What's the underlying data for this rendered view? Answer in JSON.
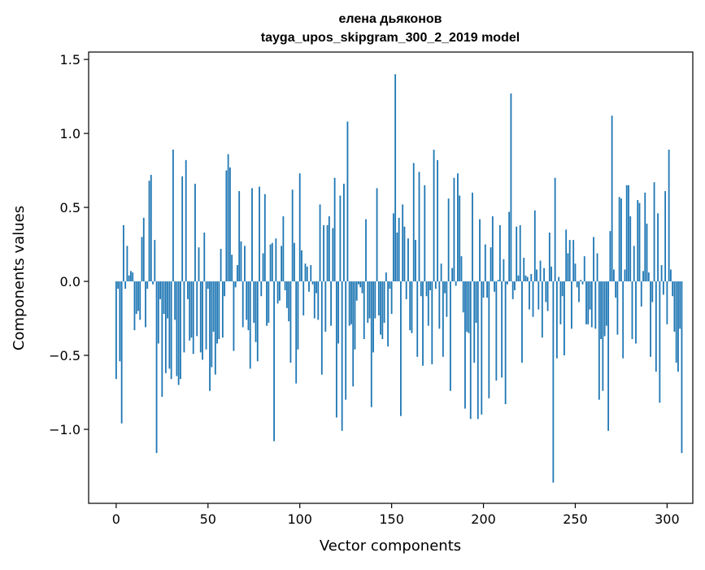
{
  "chart_data": {
    "type": "bar",
    "title": "елена дьяконов",
    "subtitle": "tayga_upos_skipgram_300_2_2019 model",
    "xlabel": "Vector components",
    "ylabel": "Components values",
    "xlim": [
      -15,
      314
    ],
    "ylim": [
      -1.5,
      1.55
    ],
    "xticks": [
      0,
      50,
      100,
      150,
      200,
      250,
      300
    ],
    "xtick_labels": [
      "0",
      "50",
      "100",
      "150",
      "200",
      "250",
      "300"
    ],
    "yticks": [
      -1.0,
      -0.5,
      0.0,
      0.5,
      1.0,
      1.5
    ],
    "ytick_labels": [
      "−1.0",
      "−0.5",
      "0.0",
      "0.5",
      "1.0",
      "1.5"
    ],
    "grid": false,
    "bar_color": "#1f77b4",
    "values": [
      -0.66,
      -0.05,
      -0.54,
      -0.96,
      0.38,
      -0.05,
      0.24,
      0.04,
      0.07,
      0.06,
      -0.33,
      -0.22,
      -0.2,
      -0.26,
      0.3,
      0.43,
      -0.31,
      -0.05,
      0.68,
      0.72,
      -0.02,
      0.28,
      -1.16,
      -0.42,
      -0.12,
      -0.78,
      -0.22,
      -0.62,
      -0.25,
      -0.59,
      -0.66,
      0.89,
      -0.26,
      -0.64,
      -0.7,
      -0.66,
      0.71,
      -0.48,
      0.82,
      -0.12,
      -0.4,
      -0.38,
      -0.49,
      0.66,
      -0.37,
      0.23,
      -0.48,
      -0.53,
      0.33,
      -0.46,
      -0.05,
      -0.74,
      -0.58,
      -0.34,
      -0.63,
      -0.42,
      -0.39,
      0.22,
      -0.38,
      -0.1,
      0.75,
      0.86,
      0.77,
      0.18,
      -0.47,
      -0.04,
      0.11,
      0.61,
      0.27,
      -0.31,
      0.24,
      -0.26,
      -0.33,
      -0.59,
      0.63,
      -0.28,
      -0.41,
      -0.54,
      0.64,
      -0.1,
      0.19,
      0.59,
      -0.3,
      -0.28,
      0.25,
      0.26,
      -1.08,
      0.29,
      -0.15,
      -0.13,
      0.24,
      0.44,
      -0.06,
      -0.18,
      -0.27,
      -0.55,
      0.62,
      0.26,
      -0.69,
      -0.46,
      0.73,
      0.21,
      -0.23,
      0.12,
      0.1,
      -0.07,
      0.11,
      -0.02,
      -0.25,
      -0.08,
      -0.26,
      0.52,
      -0.63,
      0.38,
      -0.34,
      0.38,
      0.44,
      -0.3,
      0.36,
      0.7,
      -0.92,
      -0.42,
      0.58,
      -1.01,
      0.66,
      -0.8,
      1.08,
      -0.3,
      -0.29,
      -0.71,
      -0.46,
      -0.13,
      -0.02,
      -0.04,
      -0.08,
      -0.39,
      0.42,
      -0.28,
      -0.25,
      -0.85,
      -0.48,
      -0.25,
      0.63,
      -0.23,
      -0.36,
      -0.39,
      -0.28,
      0.06,
      -0.44,
      -0.05,
      -0.22,
      0.46,
      1.4,
      0.33,
      0.43,
      -0.91,
      0.52,
      0.37,
      -0.12,
      0.29,
      -0.33,
      -0.35,
      0.8,
      0.28,
      -0.51,
      0.74,
      -0.1,
      -0.57,
      0.65,
      -0.1,
      -0.3,
      -0.06,
      -0.56,
      0.89,
      -0.05,
      0.82,
      -0.32,
      0.12,
      -0.51,
      -0.08,
      -0.24,
      0.56,
      -0.74,
      0.09,
      0.7,
      -0.03,
      0.73,
      0.58,
      0.17,
      -0.21,
      -0.86,
      -0.34,
      -0.35,
      -0.93,
      0.6,
      -0.55,
      -0.28,
      -0.93,
      0.42,
      -0.9,
      -0.11,
      0.25,
      -0.11,
      -0.79,
      0.23,
      0.44,
      -0.07,
      -0.67,
      0.01,
      0.38,
      -0.65,
      0.15,
      -0.83,
      -0.02,
      0.47,
      1.27,
      -0.12,
      -0.06,
      0.37,
      0.04,
      0.38,
      -0.55,
      0.16,
      0.04,
      0.03,
      -0.19,
      0.05,
      -0.24,
      0.48,
      0.08,
      -0.19,
      0.14,
      -0.38,
      0.09,
      -0.14,
      -0.2,
      0.33,
      0.1,
      -1.36,
      0.7,
      -0.52,
      0.03,
      -0.29,
      -0.1,
      -0.5,
      0.35,
      0.19,
      0.28,
      -0.32,
      0.28,
      0.12,
      -0.04,
      -0.14,
      0.01,
      -0.02,
      0.17,
      -0.29,
      -0.29,
      -0.19,
      -0.31,
      0.3,
      -0.32,
      0.19,
      -0.8,
      -0.39,
      -0.74,
      -0.37,
      -0.3,
      -1.01,
      0.34,
      1.12,
      0.08,
      -0.11,
      -0.36,
      0.57,
      0.56,
      -0.52,
      0.08,
      0.65,
      0.65,
      0.44,
      -0.39,
      0.24,
      -0.42,
      0.55,
      0.53,
      -0.17,
      0.07,
      0.6,
      0.39,
      0.06,
      -0.51,
      -0.14,
      0.67,
      -0.61,
      0.46,
      -0.82,
      0.11,
      -0.09,
      0.61,
      -0.29,
      0.89,
      0.08,
      -0.1,
      -0.34,
      -0.55,
      -0.61,
      -0.32,
      -1.16
    ]
  }
}
